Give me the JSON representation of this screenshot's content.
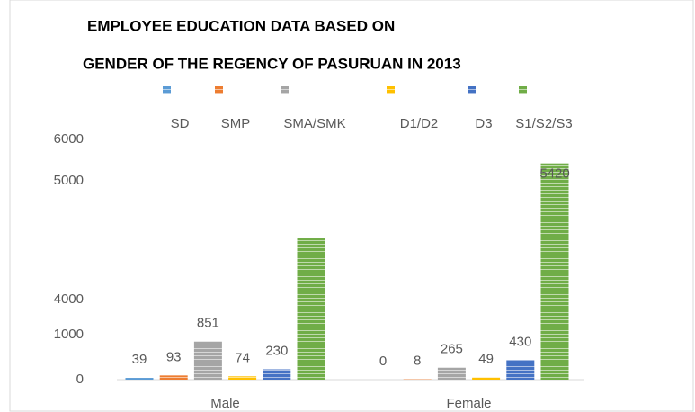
{
  "chart_data": {
    "type": "bar",
    "title": [
      "EMPLOYEE EDUCATION DATA BASED ON",
      "GENDER OF THE REGENCY OF PASURUAN IN 2013"
    ],
    "categories": [
      "Male",
      "Female"
    ],
    "series": [
      {
        "name": "SD",
        "color": "#5b9bd5",
        "values": [
          39,
          0
        ]
      },
      {
        "name": "SMP",
        "color": "#ed7d31",
        "values": [
          93,
          8
        ]
      },
      {
        "name": "SMA/SMK",
        "color": "#a5a5a5",
        "values": [
          851,
          265
        ]
      },
      {
        "name": "D1/D2",
        "color": "#ffc000",
        "values": [
          74,
          49
        ]
      },
      {
        "name": "D3",
        "color": "#4472c4",
        "values": [
          230,
          430
        ]
      },
      {
        "name": "S1/S2/S3",
        "color": "#70ad47",
        "values": [
          4515,
          5420
        ],
        "value_labels": [
          null,
          "5420"
        ]
      }
    ],
    "ylim": [
      0,
      6000
    ],
    "yticks": [
      0,
      1000,
      4000,
      5000,
      6000
    ],
    "legend": "top"
  }
}
